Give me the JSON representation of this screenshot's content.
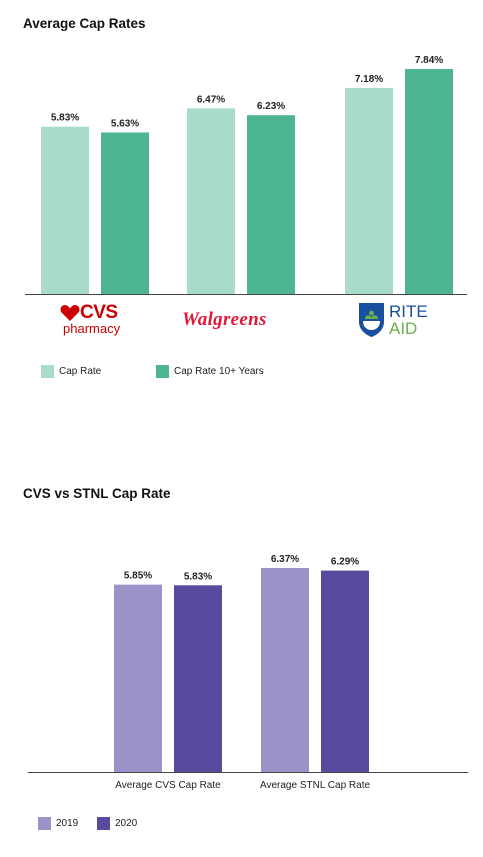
{
  "charts": {
    "first": {
      "title": "Average Cap Rates",
      "legend": [
        {
          "label": "Cap Rate",
          "color": "#a8dcc9"
        },
        {
          "label": "Cap Rate 10+ Years",
          "color": "#4db594"
        }
      ]
    },
    "second": {
      "title": "CVS vs STNL Cap Rate",
      "legend": [
        {
          "label": "2019",
          "color": "#9b93c8"
        },
        {
          "label": "2020",
          "color": "#584a9f"
        }
      ]
    }
  },
  "logos": {
    "cvs_main": "CVS",
    "cvs_sub": "pharmacy",
    "walgreens": "Walgreens",
    "rite_line1": "RITE",
    "rite_line2": "AID"
  },
  "chart_data": [
    {
      "type": "bar",
      "title": "Average Cap Rates",
      "categories": [
        "CVS pharmacy",
        "Walgreens",
        "RITE AID"
      ],
      "series": [
        {
          "name": "Cap Rate",
          "values": [
            5.83,
            6.47,
            7.18
          ],
          "labels": [
            "5.83%",
            "6.47%",
            "7.18%"
          ],
          "color": "#a8dcc9"
        },
        {
          "name": "Cap Rate 10+ Years",
          "values": [
            5.63,
            6.23,
            7.84
          ],
          "labels": [
            "5.63%",
            "6.23%",
            "7.84%"
          ],
          "color": "#4db594"
        }
      ],
      "ylim": [
        0,
        7.84
      ],
      "grid": false,
      "legend_position": "bottom-left",
      "category_labels_shown_as": "logos"
    },
    {
      "type": "bar",
      "title": "CVS vs STNL Cap Rate",
      "categories": [
        "Average CVS Cap Rate",
        "Average STNL Cap Rate"
      ],
      "series": [
        {
          "name": "2019",
          "values": [
            5.85,
            6.37
          ],
          "labels": [
            "5.85%",
            "6.37%"
          ],
          "color": "#9b93c8"
        },
        {
          "name": "2020",
          "values": [
            5.83,
            6.29
          ],
          "labels": [
            "5.83%",
            "6.29%"
          ],
          "color": "#584a9f"
        }
      ],
      "ylim": [
        0,
        6.37
      ],
      "grid": false,
      "legend_position": "bottom-left"
    }
  ]
}
